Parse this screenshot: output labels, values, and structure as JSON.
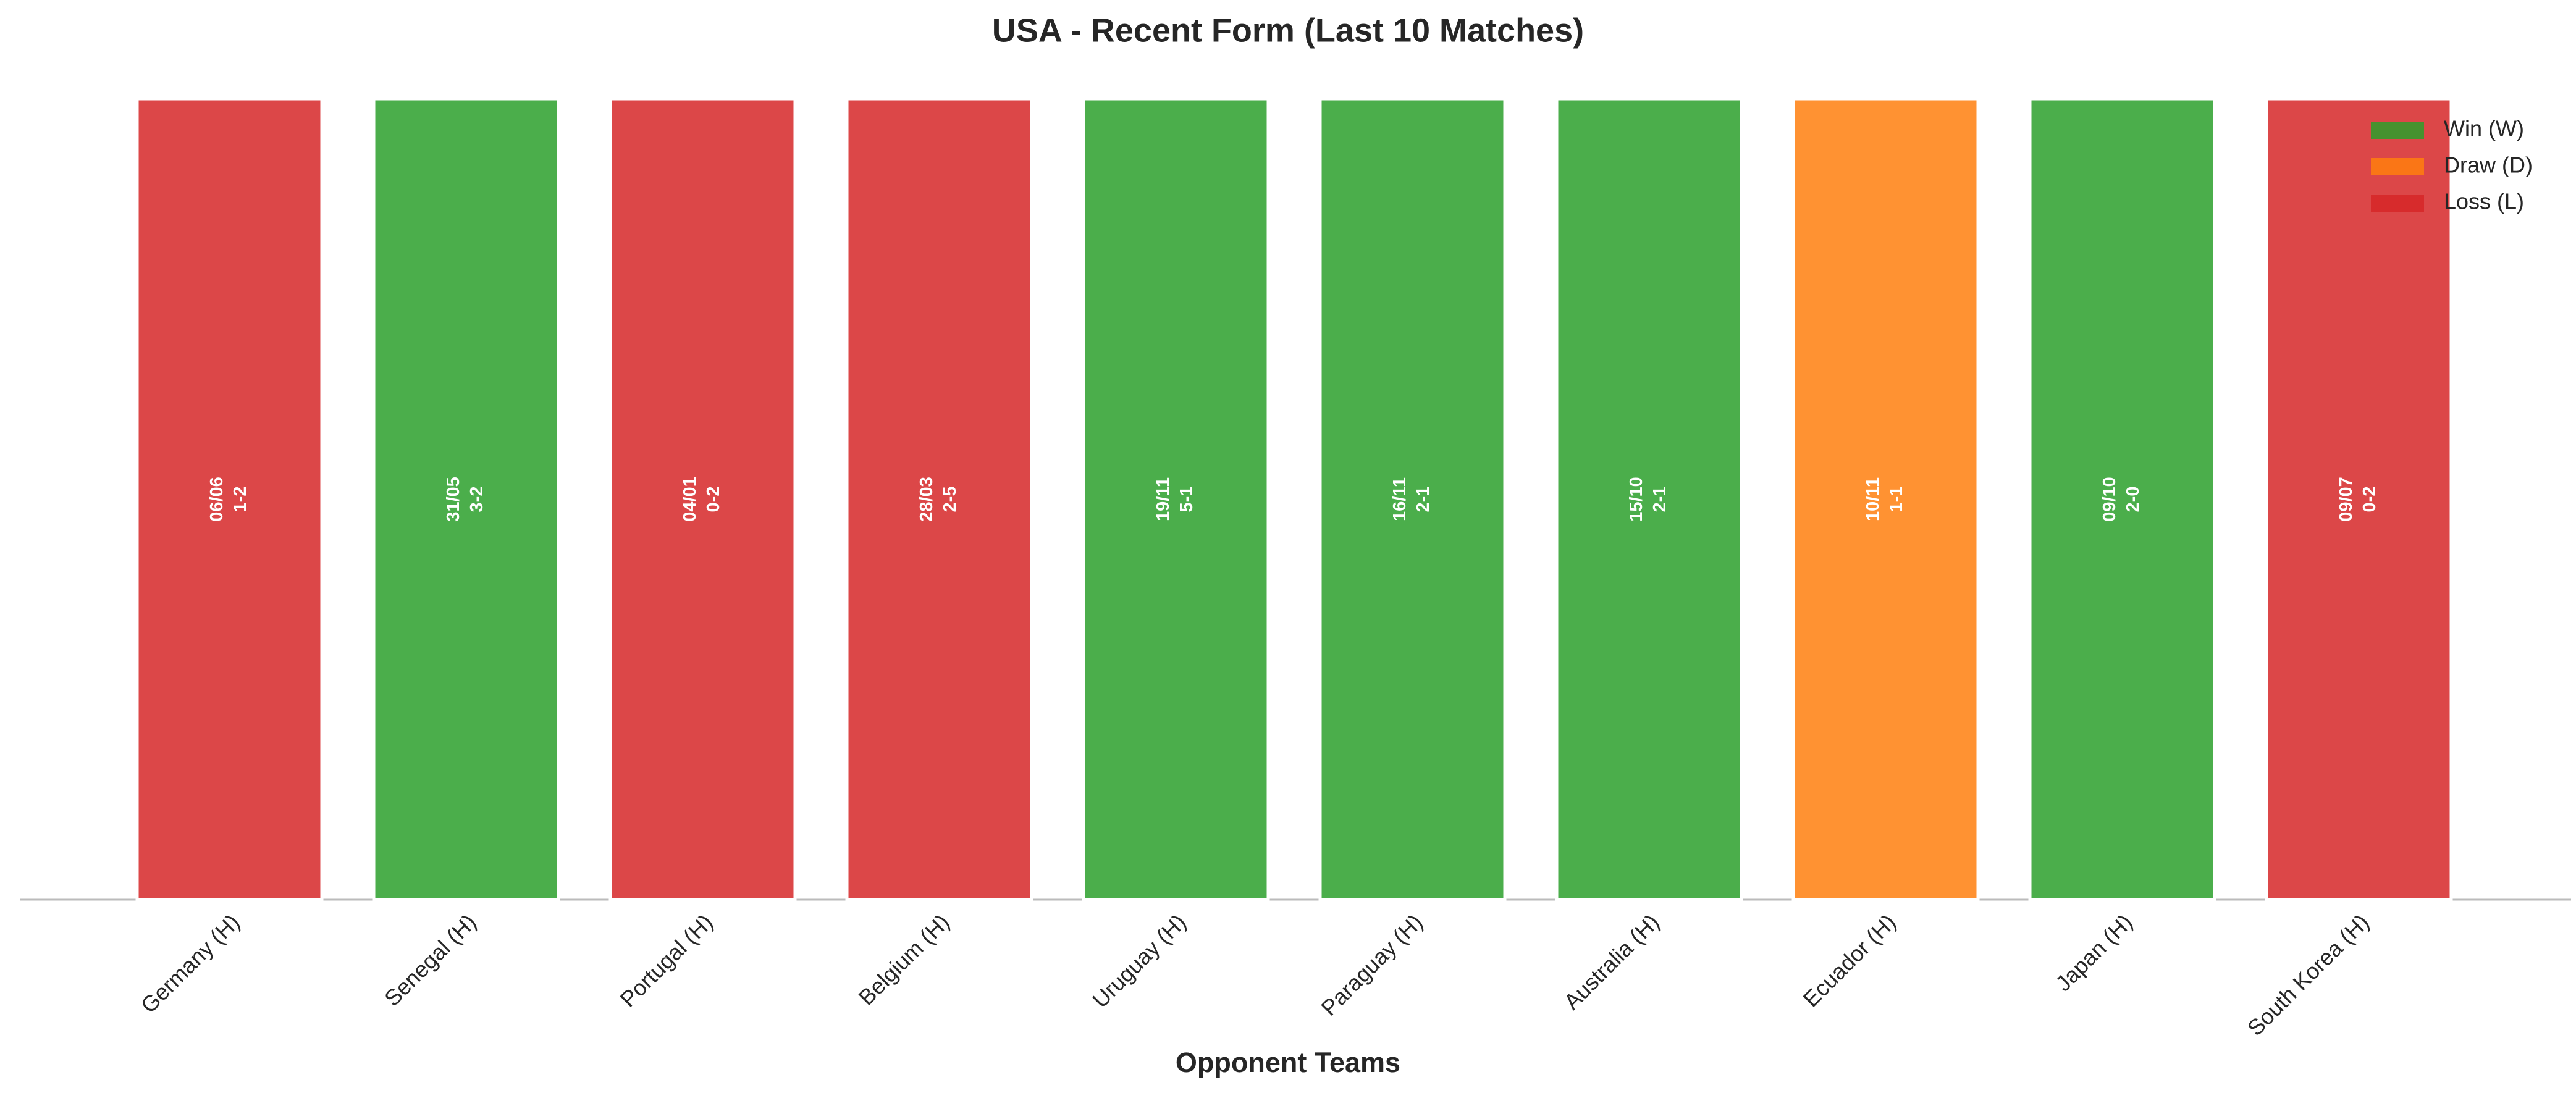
{
  "chart_data": {
    "type": "bar",
    "title": "USA - Recent Form (Last 10 Matches)",
    "x_label": "Opponent Teams",
    "categories": [
      "Germany (H)",
      "Senegal (H)",
      "Portugal (H)",
      "Belgium (H)",
      "Uruguay (H)",
      "Paraguay (H)",
      "Australia (H)",
      "Ecuador (H)",
      "Japan (H)",
      "South Korea (H)"
    ],
    "values": [
      1,
      1,
      1,
      1,
      1,
      1,
      1,
      1,
      1,
      1
    ],
    "ylim": [
      0,
      1
    ],
    "dates": [
      "06/06",
      "31/05",
      "04/01",
      "28/03",
      "19/11",
      "16/11",
      "15/10",
      "10/11",
      "09/10",
      "09/07"
    ],
    "scores": [
      "1-2",
      "3-2",
      "0-2",
      "2-5",
      "5-1",
      "2-1",
      "2-1",
      "1-1",
      "2-0",
      "0-2"
    ],
    "colors": [
      "#d62728",
      "#2ca02c",
      "#d62728",
      "#d62728",
      "#2ca02c",
      "#2ca02c",
      "#2ca02c",
      "#ff7f0e",
      "#2ca02c",
      "#d62728"
    ],
    "legend": [
      {
        "name": "Win (W)",
        "color": "#2ca02c"
      },
      {
        "name": "Draw (D)",
        "color": "#ff7f0e"
      },
      {
        "name": "Loss (L)",
        "color": "#d62728"
      }
    ],
    "legend_position": "upper right"
  }
}
